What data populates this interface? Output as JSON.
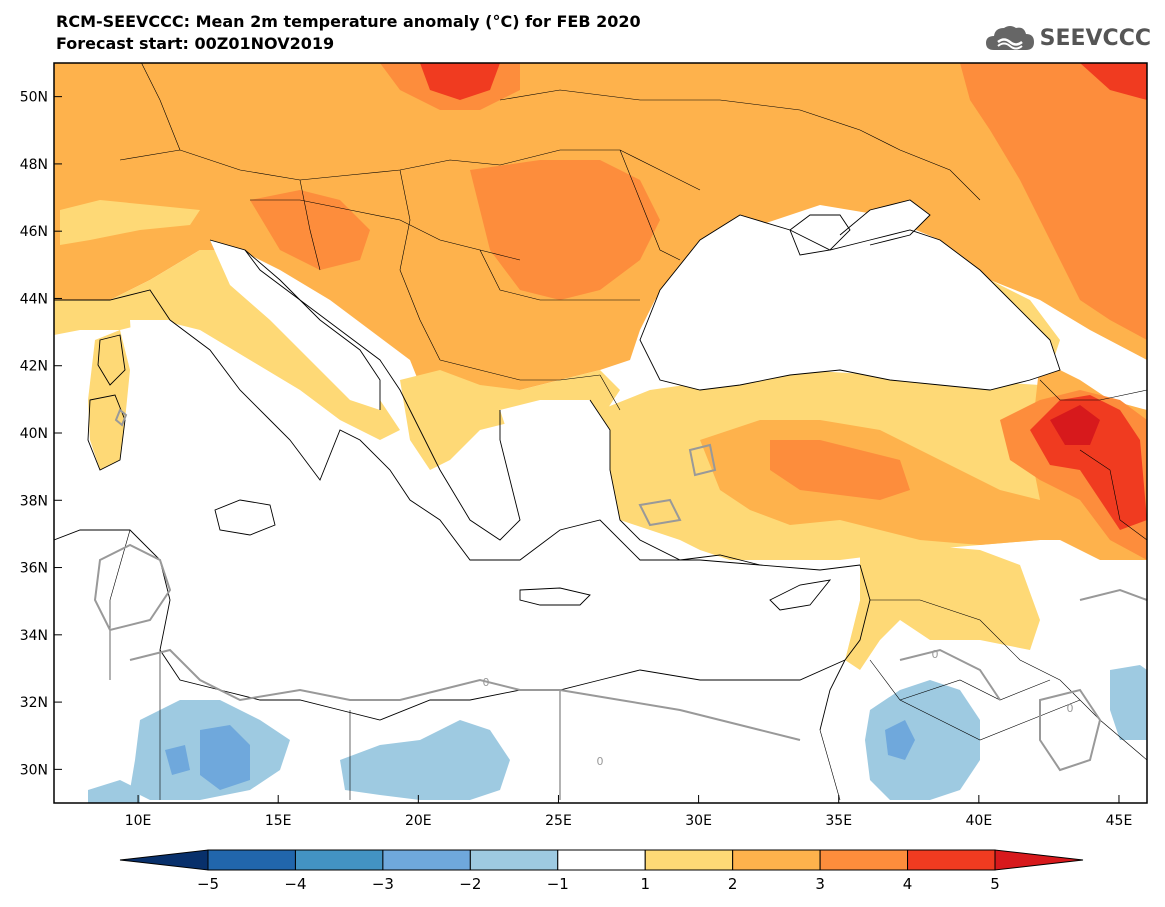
{
  "header": {
    "title": "RCM-SEEVCCC: Mean 2m temperature anomaly (°C) for FEB 2020",
    "subtitle": "Forecast start: 00Z01NOV2019",
    "logo_text": "SEEVCCC",
    "logo_icon": "cloud-icon"
  },
  "map": {
    "lon_range": [
      7,
      46
    ],
    "lat_range": [
      29,
      51
    ],
    "lon_ticks": [
      {
        "value": 10,
        "label": "10E"
      },
      {
        "value": 15,
        "label": "15E"
      },
      {
        "value": 20,
        "label": "20E"
      },
      {
        "value": 25,
        "label": "25E"
      },
      {
        "value": 30,
        "label": "30E"
      },
      {
        "value": 35,
        "label": "35E"
      },
      {
        "value": 40,
        "label": "40E"
      },
      {
        "value": 45,
        "label": "45E"
      }
    ],
    "lat_ticks": [
      {
        "value": 50,
        "label": "50N"
      },
      {
        "value": 48,
        "label": "48N"
      },
      {
        "value": 46,
        "label": "46N"
      },
      {
        "value": 44,
        "label": "44N"
      },
      {
        "value": 42,
        "label": "42N"
      },
      {
        "value": 40,
        "label": "40N"
      },
      {
        "value": 38,
        "label": "38N"
      },
      {
        "value": 36,
        "label": "36N"
      },
      {
        "value": 34,
        "label": "34N"
      },
      {
        "value": 32,
        "label": "32N"
      },
      {
        "value": 30,
        "label": "30N"
      }
    ],
    "contour_label": "0"
  },
  "colorbar": {
    "levels": [
      "-5",
      "-4",
      "-3",
      "-2",
      "-1",
      "1",
      "2",
      "3",
      "4",
      "5"
    ],
    "colors": [
      "#08306b",
      "#2166ac",
      "#4393c3",
      "#6fa8dc",
      "#9ecae1",
      "#ffffff",
      "#fed976",
      "#feb24c",
      "#fd8d3c",
      "#f03b20",
      "#d7191c"
    ]
  }
}
